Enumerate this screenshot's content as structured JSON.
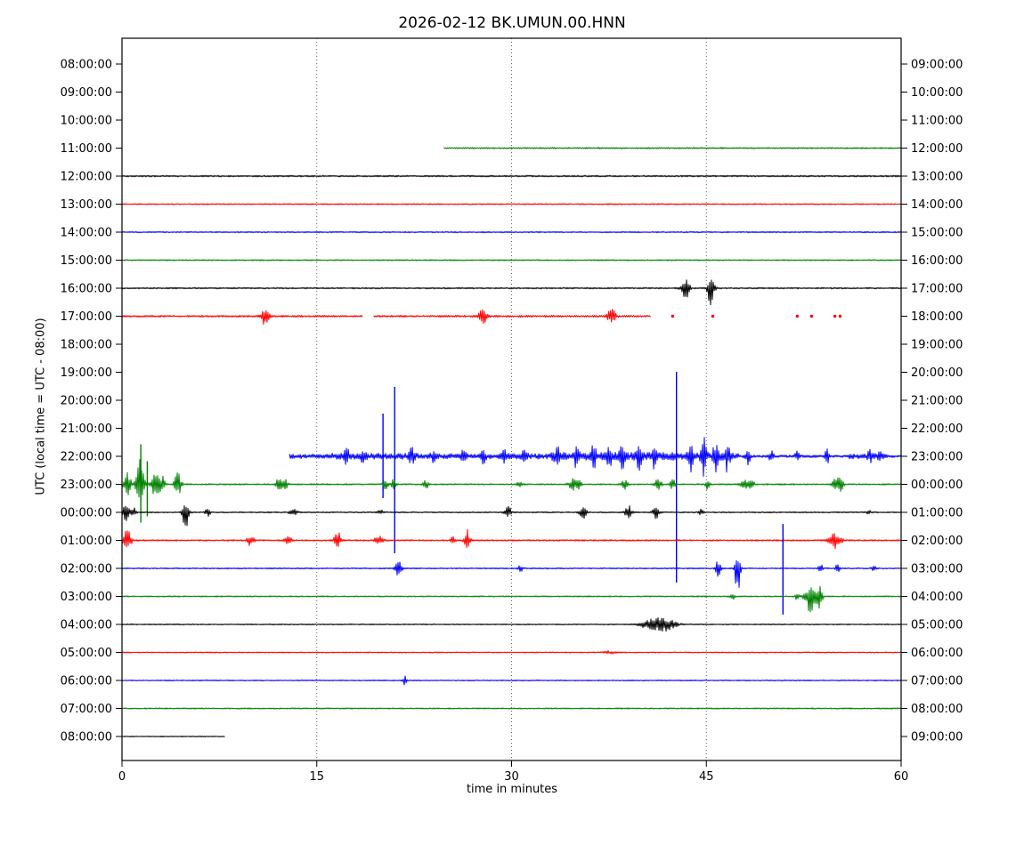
{
  "title": "2026-02-12 BK.UMUN.00.HNN",
  "axes": {
    "xlabel": "time in minutes",
    "ylabel": "UTC (local time = UTC - 08:00)",
    "x_ticks": [
      0,
      15,
      30,
      45,
      60
    ],
    "x_range_minutes": [
      0,
      60
    ],
    "left_labels": [
      "08:00:00",
      "09:00:00",
      "10:00:00",
      "11:00:00",
      "12:00:00",
      "13:00:00",
      "14:00:00",
      "15:00:00",
      "16:00:00",
      "17:00:00",
      "18:00:00",
      "19:00:00",
      "20:00:00",
      "21:00:00",
      "22:00:00",
      "23:00:00",
      "00:00:00",
      "01:00:00",
      "02:00:00",
      "03:00:00",
      "04:00:00",
      "05:00:00",
      "06:00:00",
      "07:00:00",
      "08:00:00"
    ],
    "right_labels": [
      "09:00:00",
      "10:00:00",
      "11:00:00",
      "12:00:00",
      "13:00:00",
      "14:00:00",
      "15:00:00",
      "16:00:00",
      "17:00:00",
      "18:00:00",
      "19:00:00",
      "20:00:00",
      "21:00:00",
      "22:00:00",
      "23:00:00",
      "00:00:00",
      "01:00:00",
      "02:00:00",
      "03:00:00",
      "04:00:00",
      "05:00:00",
      "06:00:00",
      "07:00:00",
      "08:00:00",
      "09:00:00"
    ]
  },
  "colors": {
    "black": "#000000",
    "red": "#ff0000",
    "blue": "#0000ff",
    "green": "#008000",
    "grid": "#555555",
    "frame": "#000000"
  },
  "chart_data": {
    "type": "line",
    "subtype": "helicorder-dayplot",
    "title": "2026-02-12 BK.UMUN.00.HNN",
    "xlabel": "time in minutes",
    "ylabel": "UTC (local time = UTC - 08:00)",
    "minutes_per_row": 60,
    "grid_minutes": [
      15,
      30,
      45
    ],
    "rows_per_page": 25,
    "traces": [
      {
        "utc_start": "11:00:00",
        "utc_end": "12:00:00",
        "slot": 3,
        "color": "#008000",
        "segments": [
          [
            24.8,
            60
          ]
        ],
        "noise": 0.8,
        "events": [],
        "spikes": [],
        "dots": []
      },
      {
        "utc_start": "12:00:00",
        "utc_end": "13:00:00",
        "slot": 4,
        "color": "#000000",
        "segments": [
          [
            0,
            60
          ]
        ],
        "noise": 0.9,
        "events": [],
        "spikes": [],
        "dots": []
      },
      {
        "utc_start": "13:00:00",
        "utc_end": "14:00:00",
        "slot": 5,
        "color": "#ff0000",
        "segments": [
          [
            0,
            60
          ]
        ],
        "noise": 0.7,
        "events": [],
        "spikes": [],
        "dots": []
      },
      {
        "utc_start": "14:00:00",
        "utc_end": "15:00:00",
        "slot": 6,
        "color": "#0000ff",
        "segments": [
          [
            0,
            60
          ]
        ],
        "noise": 0.7,
        "events": [],
        "spikes": [],
        "dots": []
      },
      {
        "utc_start": "15:00:00",
        "utc_end": "16:00:00",
        "slot": 7,
        "color": "#008000",
        "segments": [
          [
            0,
            60
          ]
        ],
        "noise": 0.7,
        "events": [],
        "spikes": [],
        "dots": []
      },
      {
        "utc_start": "16:00:00",
        "utc_end": "17:00:00",
        "slot": 8,
        "color": "#000000",
        "segments": [
          [
            0,
            60
          ]
        ],
        "noise": 0.8,
        "events": [
          {
            "t": 43.3,
            "a": 10,
            "d": 12,
            "w": 0.25
          },
          {
            "t": 43.6,
            "a": 7
          },
          {
            "t": 45.3,
            "a": 9,
            "d": 24,
            "w": 0.2
          },
          {
            "t": 45.6,
            "a": 5
          }
        ],
        "spikes": [],
        "dots": []
      },
      {
        "utc_start": "17:00:00",
        "utc_end": "18:00:00",
        "slot": 9,
        "color": "#ff0000",
        "segments": [
          [
            0,
            18.5
          ],
          [
            19.4,
            40.7
          ]
        ],
        "noise": 1.1,
        "events": [
          {
            "t": 11,
            "a": 9,
            "d": 10,
            "w": 0.3
          },
          {
            "t": 27.8,
            "a": 9,
            "d": 10,
            "w": 0.3
          },
          {
            "t": 37.7,
            "a": 8,
            "d": 8,
            "w": 0.3
          }
        ],
        "spikes": [],
        "dots": [
          42.4,
          45.5,
          52.0,
          53.1,
          54.9,
          55.3
        ]
      },
      {
        "utc_start": "22:00:00",
        "utc_end": "23:00:00",
        "slot": 14,
        "color": "#0000ff",
        "segments": [
          [
            12.9,
            60
          ]
        ],
        "noise": [
          [
            12.9,
            16,
            2.5
          ],
          [
            16,
            23,
            3.5
          ],
          [
            23,
            33,
            3.0
          ],
          [
            33,
            47.5,
            4.5
          ],
          [
            47.5,
            56,
            1.4
          ],
          [
            56,
            59,
            3.0
          ],
          [
            59,
            60,
            1.5
          ]
        ],
        "events": [
          {
            "t": 17.3,
            "a": 8
          },
          {
            "t": 18.6,
            "a": 7
          },
          {
            "t": 22.3,
            "a": 8
          },
          {
            "t": 24,
            "a": 6
          },
          {
            "t": 26.3,
            "a": 10
          },
          {
            "t": 27.8,
            "a": 9
          },
          {
            "t": 29.5,
            "a": 8
          },
          {
            "t": 31,
            "a": 7
          },
          {
            "t": 33.5,
            "a": 10
          },
          {
            "t": 35,
            "a": 12
          },
          {
            "t": 36.3,
            "a": 14
          },
          {
            "t": 37.5,
            "a": 13
          },
          {
            "t": 38.5,
            "a": 16
          },
          {
            "t": 39.8,
            "a": 14
          },
          {
            "t": 41,
            "a": 13
          },
          {
            "t": 43.8,
            "a": 18
          },
          {
            "t": 44.8,
            "a": 20
          },
          {
            "t": 45.7,
            "a": 16
          },
          {
            "t": 46.6,
            "a": 14
          },
          {
            "t": 48.2,
            "a": 10
          },
          {
            "t": 50,
            "a": 6
          },
          {
            "t": 52,
            "a": 5
          },
          {
            "t": 54.3,
            "a": 8
          },
          {
            "t": 57.6,
            "a": 6
          },
          {
            "t": 58.3,
            "a": 6
          }
        ],
        "spikes": [
          {
            "t": 20.1,
            "u": 48,
            "d": 47
          },
          {
            "t": 21.0,
            "u": 78,
            "d": 109
          },
          {
            "t": 42.7,
            "u": 95,
            "d": 142
          }
        ],
        "dots": []
      },
      {
        "utc_start": "23:00:00",
        "utc_end": "00:00:00",
        "slot": 15,
        "color": "#008000",
        "segments": [
          [
            0,
            60
          ]
        ],
        "noise": 0.8,
        "events": [
          {
            "t": 0.4,
            "a": 18,
            "d": 14,
            "w": 0.25
          },
          {
            "t": 1.4,
            "a": 30,
            "d": 30,
            "w": 0.3
          },
          {
            "t": 2.6,
            "a": 18,
            "d": 20,
            "w": 0.3
          },
          {
            "t": 3.1,
            "a": 10
          },
          {
            "t": 4.3,
            "a": 14,
            "d": 18,
            "w": 0.25
          },
          {
            "t": 12.1,
            "a": 7,
            "w": 0.25
          },
          {
            "t": 12.6,
            "a": 6
          },
          {
            "t": 20.3,
            "a": 6
          },
          {
            "t": 20.9,
            "a": 5
          },
          {
            "t": 23.4,
            "a": 5
          },
          {
            "t": 30.6,
            "a": 3
          },
          {
            "t": 34.7,
            "a": 6,
            "d": 7,
            "w": 0.3
          },
          {
            "t": 35.2,
            "a": 5
          },
          {
            "t": 38.7,
            "a": 5,
            "w": 0.25
          },
          {
            "t": 41.3,
            "a": 6,
            "d": 7,
            "w": 0.25
          },
          {
            "t": 42.4,
            "a": 6
          },
          {
            "t": 45.1,
            "a": 6
          },
          {
            "t": 48,
            "a": 6,
            "w": 0.3
          },
          {
            "t": 48.5,
            "a": 5
          },
          {
            "t": 55,
            "a": 7,
            "d": 8,
            "w": 0.3
          },
          {
            "t": 55.4,
            "a": 6
          }
        ],
        "spikes": [
          {
            "t": 1.45,
            "u": 45,
            "d": 43
          },
          {
            "t": 1.95,
            "u": 26,
            "d": 36
          }
        ],
        "dots": []
      },
      {
        "utc_start": "00:00:00",
        "utc_end": "01:00:00",
        "slot": 16,
        "color": "#000000",
        "segments": [
          [
            0,
            60
          ]
        ],
        "noise": 0.7,
        "events": [
          {
            "t": 0.3,
            "a": 12,
            "d": 10,
            "w": 0.25
          },
          {
            "t": 0.9,
            "a": 6
          },
          {
            "t": 4.9,
            "a": 12,
            "d": 20,
            "w": 0.22
          },
          {
            "t": 6.6,
            "a": 5
          },
          {
            "t": 13.2,
            "a": 4,
            "w": 0.3
          },
          {
            "t": 19.9,
            "a": 3
          },
          {
            "t": 29.7,
            "a": 8,
            "d": 6,
            "w": 0.25
          },
          {
            "t": 35.5,
            "a": 8,
            "w": 0.25
          },
          {
            "t": 39,
            "a": 8,
            "d": 7,
            "w": 0.25
          },
          {
            "t": 41.1,
            "a": 9,
            "d": 8,
            "w": 0.25
          },
          {
            "t": 44.6,
            "a": 3
          },
          {
            "t": 57.5,
            "a": 2
          }
        ],
        "spikes": [],
        "dots": []
      },
      {
        "utc_start": "01:00:00",
        "utc_end": "02:00:00",
        "slot": 17,
        "color": "#ff0000",
        "segments": [
          [
            0,
            60
          ]
        ],
        "noise": 0.9,
        "events": [
          {
            "t": 0.4,
            "a": 12,
            "d": 14,
            "w": 0.3
          },
          {
            "t": 9.9,
            "a": 6,
            "w": 0.25
          },
          {
            "t": 12.8,
            "a": 7,
            "w": 0.25
          },
          {
            "t": 16.6,
            "a": 10,
            "w": 0.25
          },
          {
            "t": 19.8,
            "a": 6,
            "d": 5,
            "w": 0.3
          },
          {
            "t": 25.5,
            "a": 5
          },
          {
            "t": 26.6,
            "a": 12,
            "d": 13,
            "w": 0.2
          },
          {
            "t": 54.9,
            "a": 9,
            "d": 10,
            "w": 0.45
          }
        ],
        "spikes": [],
        "dots": []
      },
      {
        "utc_start": "02:00:00",
        "utc_end": "03:00:00",
        "slot": 18,
        "color": "#0000ff",
        "segments": [
          [
            0,
            60
          ]
        ],
        "noise": 0.7,
        "events": [
          {
            "t": 21.3,
            "a": 8,
            "d": 10,
            "w": 0.25
          },
          {
            "t": 30.7,
            "a": 4
          },
          {
            "t": 45.9,
            "a": 12,
            "d": 22,
            "w": 0.18
          },
          {
            "t": 47.4,
            "a": 14,
            "d": 30,
            "w": 0.2
          },
          {
            "t": 53.8,
            "a": 5
          },
          {
            "t": 55.1,
            "a": 4
          },
          {
            "t": 57.9,
            "a": 3
          }
        ],
        "spikes": [
          {
            "t": 50.9,
            "u": 50,
            "d": 52
          }
        ],
        "dots": []
      },
      {
        "utc_start": "03:00:00",
        "utc_end": "04:00:00",
        "slot": 19,
        "color": "#008000",
        "segments": [
          [
            0,
            60
          ]
        ],
        "noise": 0.7,
        "events": [
          {
            "t": 47,
            "a": 4
          },
          {
            "t": 52,
            "a": 4
          },
          {
            "t": 53.2,
            "a": 13,
            "d": 24,
            "w": 0.5
          },
          {
            "t": 53.7,
            "a": 8
          }
        ],
        "spikes": [],
        "dots": []
      },
      {
        "utc_start": "04:00:00",
        "utc_end": "05:00:00",
        "slot": 20,
        "color": "#000000",
        "segments": [
          [
            0,
            60
          ]
        ],
        "noise": 0.6,
        "events": [
          {
            "t": 40.2,
            "a": 4,
            "w": 0.5
          },
          {
            "t": 41,
            "a": 5,
            "w": 0.4
          },
          {
            "t": 41.8,
            "a": 7,
            "d": 8,
            "w": 0.8
          }
        ],
        "spikes": [],
        "dots": []
      },
      {
        "utc_start": "05:00:00",
        "utc_end": "06:00:00",
        "slot": 21,
        "color": "#ff0000",
        "segments": [
          [
            0,
            60
          ]
        ],
        "noise": 0.6,
        "events": [
          {
            "t": 37.6,
            "a": 1.5,
            "w": 0.5
          }
        ],
        "spikes": [],
        "dots": []
      },
      {
        "utc_start": "06:00:00",
        "utc_end": "07:00:00",
        "slot": 22,
        "color": "#0000ff",
        "segments": [
          [
            0,
            60
          ]
        ],
        "noise": 0.6,
        "events": [
          {
            "t": 21.8,
            "a": 5,
            "d": 6,
            "w": 0.15
          }
        ],
        "spikes": [],
        "dots": []
      },
      {
        "utc_start": "07:00:00",
        "utc_end": "08:00:00",
        "slot": 23,
        "color": "#008000",
        "segments": [
          [
            0,
            60
          ]
        ],
        "noise": 0.7,
        "events": [],
        "spikes": [],
        "dots": []
      },
      {
        "utc_start": "08:00:00",
        "utc_end": "09:00:00",
        "slot": 24,
        "color": "#000000",
        "segments": [
          [
            0,
            7.9
          ]
        ],
        "noise": 0.5,
        "events": [],
        "spikes": [],
        "dots": []
      }
    ]
  }
}
